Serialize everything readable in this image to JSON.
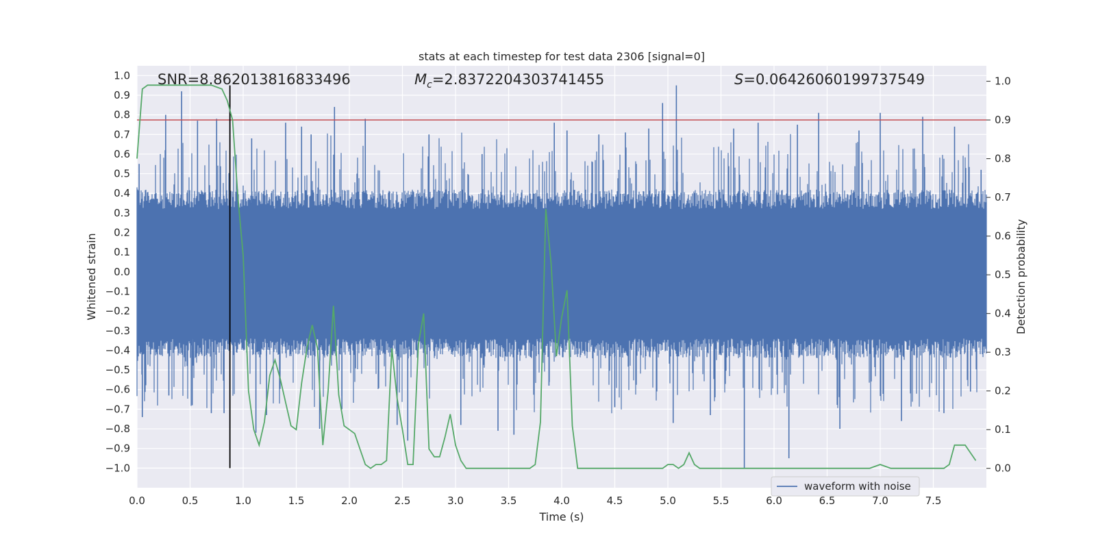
{
  "chart_data": {
    "type": "line",
    "title": "stats at each timestep for test data 2306 [signal=0]",
    "xlabel": "Time (s)",
    "ylabel": "Whitened strain",
    "y2label": "Detection probability",
    "xlim": [
      0.0,
      8.0
    ],
    "ylim": [
      -1.1,
      1.05
    ],
    "y2lim": [
      -0.05,
      1.04
    ],
    "x_ticks": [
      "0.0",
      "0.5",
      "1.0",
      "1.5",
      "2.0",
      "2.5",
      "3.0",
      "3.5",
      "4.0",
      "4.5",
      "5.0",
      "5.5",
      "6.0",
      "6.5",
      "7.0",
      "7.5"
    ],
    "y_ticks": [
      "1.0",
      "0.9",
      "0.8",
      "0.7",
      "0.6",
      "0.5",
      "0.4",
      "0.3",
      "0.2",
      "0.1",
      "0.0",
      "-0.1",
      "-0.2",
      "-0.3",
      "-0.4",
      "-0.5",
      "-0.6",
      "-0.7",
      "-0.8",
      "-0.9",
      "-1.0"
    ],
    "y2_ticks": [
      "1.0",
      "0.9",
      "0.8",
      "0.7",
      "0.6",
      "0.5",
      "0.4",
      "0.3",
      "0.2",
      "0.1",
      "0.0"
    ],
    "grid": true,
    "legend": {
      "location": "lower-right",
      "entries": [
        "waveform with noise"
      ]
    },
    "annotations": {
      "snr": "SNR=8.862013816833496",
      "mc_symbol": "M",
      "mc_sub": "c",
      "mc_value": "=2.8372204303741455",
      "s_symbol": "S",
      "s_value": "=0.06426060199737549"
    },
    "threshold": {
      "y2": 0.9,
      "color": "#c44e52"
    },
    "vline": {
      "x": 0.875,
      "y_range": [
        -1.0,
        0.95
      ],
      "color": "#000000"
    },
    "series": [
      {
        "name": "waveform with noise",
        "axis": "left",
        "color": "#4c72b0",
        "kind": "dense-noise",
        "core_amplitude": 0.4,
        "peaks": [
          {
            "x": 0.02,
            "y": 0.55
          },
          {
            "x": 0.05,
            "y": -0.74
          },
          {
            "x": 0.27,
            "y": 0.8
          },
          {
            "x": 0.3,
            "y": -0.63
          },
          {
            "x": 0.42,
            "y": 0.92
          },
          {
            "x": 0.52,
            "y": -0.68
          },
          {
            "x": 0.57,
            "y": 0.77
          },
          {
            "x": 0.7,
            "y": -0.72
          },
          {
            "x": 0.75,
            "y": 0.78
          },
          {
            "x": 0.82,
            "y": -0.72
          },
          {
            "x": 1.08,
            "y": 0.68
          },
          {
            "x": 1.12,
            "y": -0.82
          },
          {
            "x": 1.22,
            "y": -0.73
          },
          {
            "x": 1.4,
            "y": 0.76
          },
          {
            "x": 1.55,
            "y": 0.74
          },
          {
            "x": 1.64,
            "y": 0.7
          },
          {
            "x": 1.72,
            "y": -0.8
          },
          {
            "x": 1.86,
            "y": 0.84
          },
          {
            "x": 1.93,
            "y": -0.7
          },
          {
            "x": 2.15,
            "y": 0.78
          },
          {
            "x": 2.45,
            "y": -0.78
          },
          {
            "x": 2.55,
            "y": -0.86
          },
          {
            "x": 2.75,
            "y": 0.7
          },
          {
            "x": 3.05,
            "y": -0.78
          },
          {
            "x": 3.25,
            "y": 0.6
          },
          {
            "x": 3.4,
            "y": -0.81
          },
          {
            "x": 3.55,
            "y": -0.83
          },
          {
            "x": 3.88,
            "y": -0.58
          },
          {
            "x": 3.93,
            "y": 0.76
          },
          {
            "x": 4.05,
            "y": 0.72
          },
          {
            "x": 4.35,
            "y": 0.7
          },
          {
            "x": 4.5,
            "y": -0.69
          },
          {
            "x": 4.6,
            "y": 0.71
          },
          {
            "x": 4.82,
            "y": 0.73
          },
          {
            "x": 4.95,
            "y": 0.86
          },
          {
            "x": 5.05,
            "y": -0.77
          },
          {
            "x": 5.08,
            "y": 0.95
          },
          {
            "x": 5.4,
            "y": -0.73
          },
          {
            "x": 5.62,
            "y": 0.73
          },
          {
            "x": 5.72,
            "y": -1.0
          },
          {
            "x": 5.85,
            "y": 0.76
          },
          {
            "x": 6.14,
            "y": -0.95
          },
          {
            "x": 6.22,
            "y": 0.75
          },
          {
            "x": 6.42,
            "y": 0.81
          },
          {
            "x": 6.62,
            "y": -0.8
          },
          {
            "x": 6.8,
            "y": 0.72
          },
          {
            "x": 7.0,
            "y": 0.81
          },
          {
            "x": 7.2,
            "y": -0.76
          },
          {
            "x": 7.4,
            "y": 0.79
          },
          {
            "x": 7.6,
            "y": -0.72
          },
          {
            "x": 7.7,
            "y": 0.74
          },
          {
            "x": 7.85,
            "y": -0.61
          },
          {
            "x": 7.95,
            "y": 0.52
          }
        ]
      },
      {
        "name": "detection probability",
        "axis": "right",
        "color": "#55a868",
        "x": [
          0.0,
          0.05,
          0.1,
          0.2,
          0.3,
          0.4,
          0.5,
          0.6,
          0.7,
          0.8,
          0.85,
          0.9,
          0.95,
          1.0,
          1.05,
          1.1,
          1.15,
          1.2,
          1.25,
          1.3,
          1.35,
          1.4,
          1.45,
          1.5,
          1.55,
          1.6,
          1.65,
          1.7,
          1.75,
          1.8,
          1.85,
          1.9,
          1.95,
          2.0,
          2.05,
          2.1,
          2.15,
          2.2,
          2.25,
          2.3,
          2.35,
          2.4,
          2.45,
          2.5,
          2.55,
          2.6,
          2.65,
          2.7,
          2.75,
          2.8,
          2.85,
          2.9,
          2.95,
          3.0,
          3.05,
          3.1,
          3.15,
          3.2,
          3.3,
          3.4,
          3.5,
          3.6,
          3.7,
          3.75,
          3.8,
          3.85,
          3.9,
          3.95,
          4.0,
          4.05,
          4.1,
          4.15,
          4.2,
          4.25,
          4.3,
          4.4,
          4.5,
          4.6,
          4.7,
          4.8,
          4.9,
          4.95,
          5.0,
          5.05,
          5.1,
          5.15,
          5.2,
          5.25,
          5.3,
          5.35,
          5.4,
          5.5,
          5.6,
          5.7,
          5.8,
          5.9,
          6.0,
          6.1,
          6.2,
          6.3,
          6.4,
          6.5,
          6.6,
          6.7,
          6.8,
          6.9,
          7.0,
          7.1,
          7.2,
          7.3,
          7.4,
          7.5,
          7.6,
          7.65,
          7.7,
          7.75,
          7.8,
          7.85,
          7.9
        ],
        "y": [
          0.8,
          0.98,
          0.99,
          0.99,
          0.99,
          0.99,
          0.99,
          0.99,
          0.99,
          0.98,
          0.95,
          0.9,
          0.7,
          0.55,
          0.2,
          0.1,
          0.06,
          0.12,
          0.24,
          0.28,
          0.23,
          0.17,
          0.11,
          0.1,
          0.22,
          0.31,
          0.37,
          0.31,
          0.06,
          0.2,
          0.42,
          0.19,
          0.11,
          0.1,
          0.09,
          0.05,
          0.01,
          0.0,
          0.01,
          0.01,
          0.02,
          0.31,
          0.18,
          0.1,
          0.01,
          0.01,
          0.32,
          0.4,
          0.05,
          0.03,
          0.03,
          0.08,
          0.14,
          0.06,
          0.02,
          0.0,
          0.0,
          0.0,
          0.0,
          0.0,
          0.0,
          0.0,
          0.0,
          0.01,
          0.12,
          0.67,
          0.53,
          0.29,
          0.39,
          0.46,
          0.11,
          0.0,
          0.0,
          0.0,
          0.0,
          0.0,
          0.0,
          0.0,
          0.0,
          0.0,
          0.0,
          0.0,
          0.01,
          0.01,
          0.0,
          0.01,
          0.04,
          0.01,
          0.0,
          0.0,
          0.0,
          0.0,
          0.0,
          0.0,
          0.0,
          0.0,
          0.0,
          0.0,
          0.0,
          0.0,
          0.0,
          0.0,
          0.0,
          0.0,
          0.0,
          0.0,
          0.01,
          0.0,
          0.0,
          0.0,
          0.0,
          0.0,
          0.0,
          0.01,
          0.06,
          0.06,
          0.06,
          0.04,
          0.02
        ]
      }
    ]
  }
}
